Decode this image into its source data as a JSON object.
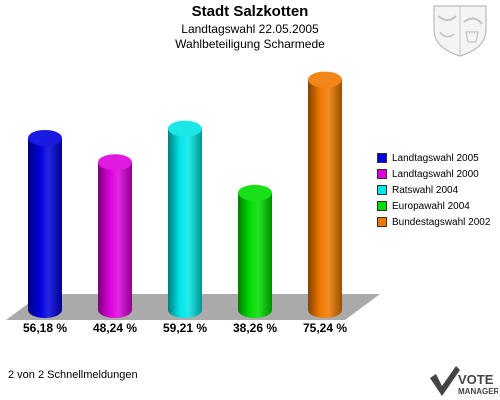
{
  "header": {
    "title": "Stadt Salzkotten",
    "subtitle_1": "Landtagswahl 22.05.2005",
    "subtitle_2": "Wahlbeteiligung Scharmede"
  },
  "chart_data": {
    "type": "bar",
    "categories": [
      "Landtagswahl 2005",
      "Landtagswahl 2000",
      "Ratswahl 2004",
      "Europawahl 2004",
      "Bundestagswahl 2002"
    ],
    "values": [
      56.18,
      48.24,
      59.21,
      38.26,
      75.24
    ],
    "value_labels": [
      "56,18 %",
      "48,24 %",
      "59,21 %",
      "38,26 %",
      "75,24 %"
    ],
    "colors": [
      "#0000dd",
      "#dd00dd",
      "#00e5e5",
      "#00dd00",
      "#f07800"
    ],
    "ylim": [
      0,
      80
    ],
    "grid": false,
    "legend_position": "right"
  },
  "footer": {
    "text": "2 von 2 Schnellmeldungen"
  },
  "logo": {
    "line1": "VOTE",
    "line2": "MANAGER"
  },
  "icons": {
    "crest": "coat-of-arms-icon",
    "logo_mark": "checkmark-icon"
  }
}
